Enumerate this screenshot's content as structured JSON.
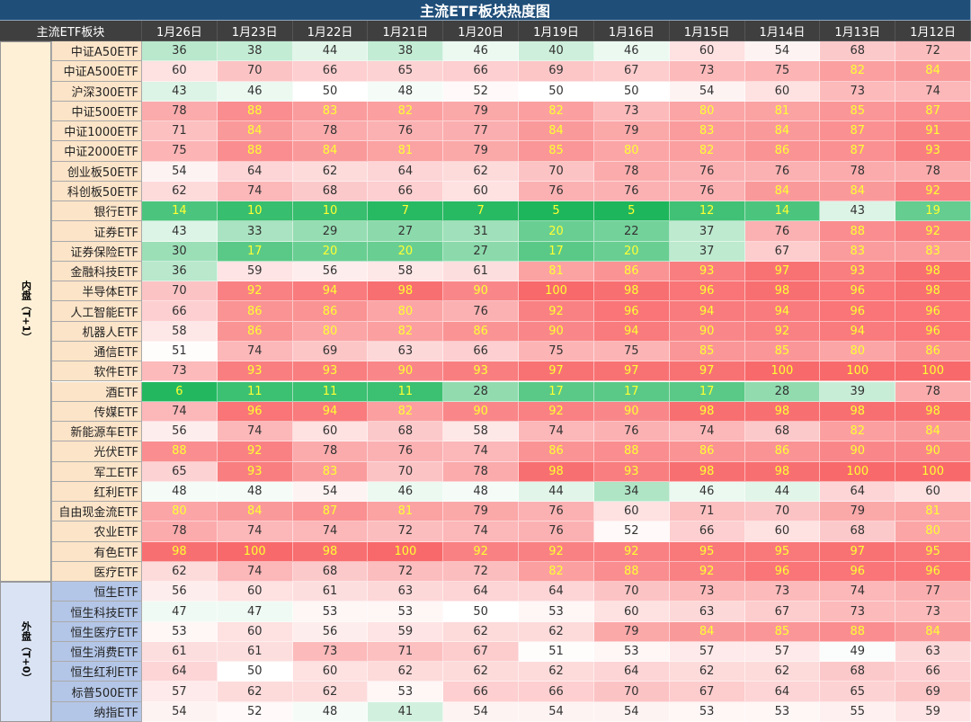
{
  "title": "主流ETF板块热度图",
  "header": [
    "主流ETF板块",
    "1月26日",
    "1月23日",
    "1月22日",
    "1月21日",
    "1月20日",
    "1月19日",
    "1月16日",
    "1月15日",
    "1月14日",
    "1月13日",
    "1月12日"
  ],
  "groups": [
    {
      "label": "内盘（T+1）",
      "rows": [
        {
          "name": "中证A50ETF",
          "values": [
            36,
            38,
            44,
            38,
            46,
            40,
            46,
            60,
            54,
            68,
            72
          ]
        },
        {
          "name": "中证A500ETF",
          "values": [
            60,
            70,
            66,
            65,
            66,
            69,
            67,
            73,
            75,
            82,
            84
          ]
        },
        {
          "name": "沪深300ETF",
          "values": [
            43,
            46,
            50,
            48,
            52,
            50,
            50,
            54,
            60,
            73,
            74
          ]
        },
        {
          "name": "中证500ETF",
          "values": [
            78,
            88,
            83,
            82,
            79,
            82,
            73,
            80,
            81,
            85,
            87
          ]
        },
        {
          "name": "中证1000ETF",
          "values": [
            71,
            84,
            78,
            76,
            77,
            84,
            79,
            83,
            84,
            87,
            91
          ]
        },
        {
          "name": "中证2000ETF",
          "values": [
            75,
            88,
            84,
            81,
            79,
            85,
            80,
            82,
            86,
            87,
            93
          ]
        },
        {
          "name": "创业板50ETF",
          "values": [
            54,
            64,
            62,
            64,
            62,
            70,
            78,
            76,
            76,
            78,
            78
          ]
        },
        {
          "name": "科创板50ETF",
          "values": [
            62,
            74,
            68,
            66,
            60,
            76,
            76,
            76,
            84,
            84,
            92
          ]
        },
        {
          "name": "银行ETF",
          "values": [
            14,
            10,
            10,
            7,
            7,
            5,
            5,
            12,
            14,
            43,
            19
          ]
        },
        {
          "name": "证券ETF",
          "values": [
            43,
            33,
            29,
            27,
            31,
            20,
            22,
            37,
            76,
            88,
            92
          ]
        },
        {
          "name": "证券保险ETF",
          "values": [
            30,
            17,
            20,
            20,
            27,
            17,
            20,
            37,
            67,
            83,
            83
          ]
        },
        {
          "name": "金融科技ETF",
          "values": [
            36,
            59,
            56,
            58,
            61,
            81,
            86,
            93,
            97,
            93,
            98
          ]
        },
        {
          "name": "半导体ETF",
          "values": [
            70,
            92,
            94,
            98,
            90,
            100,
            98,
            96,
            98,
            96,
            98
          ]
        },
        {
          "name": "人工智能ETF",
          "values": [
            66,
            86,
            86,
            80,
            76,
            92,
            96,
            94,
            94,
            96,
            96
          ]
        },
        {
          "name": "机器人ETF",
          "values": [
            58,
            86,
            80,
            82,
            86,
            90,
            94,
            90,
            92,
            94,
            96
          ]
        },
        {
          "name": "通信ETF",
          "values": [
            51,
            74,
            69,
            63,
            66,
            75,
            75,
            85,
            85,
            80,
            86
          ]
        },
        {
          "name": "软件ETF",
          "values": [
            73,
            93,
            93,
            90,
            93,
            97,
            97,
            97,
            100,
            100,
            100
          ]
        },
        {
          "name": "酒ETF",
          "values": [
            6,
            11,
            11,
            11,
            28,
            17,
            17,
            17,
            28,
            39,
            78
          ]
        },
        {
          "name": "传媒ETF",
          "values": [
            74,
            96,
            94,
            82,
            90,
            92,
            90,
            98,
            98,
            98,
            98
          ]
        },
        {
          "name": "新能源车ETF",
          "values": [
            56,
            74,
            60,
            68,
            58,
            74,
            76,
            74,
            68,
            82,
            84
          ]
        },
        {
          "name": "光伏ETF",
          "values": [
            88,
            92,
            78,
            76,
            74,
            86,
            88,
            86,
            86,
            90,
            90
          ]
        },
        {
          "name": "军工ETF",
          "values": [
            65,
            93,
            83,
            70,
            78,
            98,
            93,
            98,
            98,
            100,
            100
          ]
        },
        {
          "name": "红利ETF",
          "values": [
            48,
            48,
            54,
            46,
            48,
            44,
            34,
            46,
            44,
            64,
            60
          ]
        },
        {
          "name": "自由现金流ETF",
          "values": [
            80,
            84,
            87,
            81,
            79,
            76,
            60,
            71,
            70,
            79,
            81
          ]
        },
        {
          "name": "农业ETF",
          "values": [
            78,
            74,
            74,
            72,
            74,
            76,
            52,
            66,
            60,
            68,
            80
          ]
        },
        {
          "name": "有色ETF",
          "values": [
            98,
            100,
            98,
            100,
            92,
            92,
            92,
            95,
            95,
            97,
            95
          ]
        },
        {
          "name": "医疗ETF",
          "values": [
            62,
            74,
            68,
            72,
            72,
            82,
            88,
            92,
            96,
            96,
            96
          ]
        }
      ]
    },
    {
      "label": "外盘（T+0）",
      "rows": [
        {
          "name": "恒生ETF",
          "values": [
            56,
            60,
            61,
            63,
            64,
            64,
            70,
            73,
            73,
            74,
            77
          ]
        },
        {
          "name": "恒生科技ETF",
          "values": [
            47,
            47,
            53,
            53,
            50,
            53,
            60,
            63,
            67,
            73,
            73
          ]
        },
        {
          "name": "恒生医疗ETF",
          "values": [
            53,
            60,
            56,
            59,
            62,
            62,
            79,
            84,
            85,
            88,
            84
          ]
        },
        {
          "name": "恒生消费ETF",
          "values": [
            61,
            61,
            73,
            71,
            67,
            51,
            53,
            57,
            57,
            49,
            63
          ]
        },
        {
          "name": "恒生红利ETF",
          "values": [
            64,
            50,
            60,
            62,
            62,
            62,
            64,
            62,
            62,
            68,
            66
          ]
        },
        {
          "name": "标普500ETF",
          "values": [
            57,
            62,
            62,
            53,
            66,
            66,
            70,
            67,
            64,
            65,
            69
          ]
        },
        {
          "name": "纳指ETF",
          "values": [
            54,
            52,
            48,
            41,
            54,
            54,
            54,
            53,
            53,
            55,
            59
          ]
        }
      ]
    }
  ]
}
